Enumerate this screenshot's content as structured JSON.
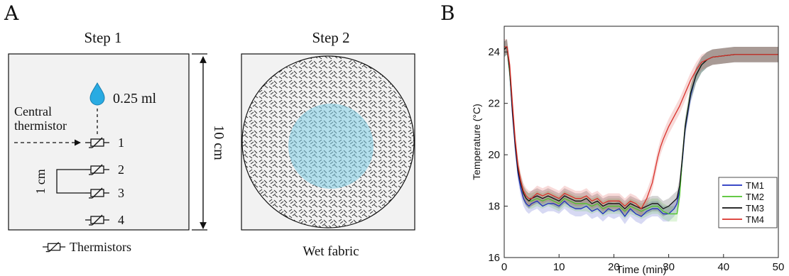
{
  "panel_a": {
    "letter": "A",
    "step1_title": "Step 1",
    "step2_title": "Step 2",
    "droplet_volume": "0.25 ml",
    "central_label_line1": "Central",
    "central_label_line2": "thermistor",
    "thermistor_labels": [
      "1",
      "2",
      "3",
      "4"
    ],
    "spacing_label": "1 cm",
    "size_label": "10 cm",
    "legend_label": "Thermistors",
    "step2_caption": "Wet fabric"
  },
  "panel_b": {
    "letter": "B"
  },
  "chart_data": {
    "type": "line",
    "title": "",
    "xlabel": "Time (min)",
    "ylabel": "Temperature (°C)",
    "xlim": [
      0,
      50
    ],
    "ylim": [
      16,
      25
    ],
    "xticks": [
      0,
      10,
      20,
      30,
      40,
      50
    ],
    "yticks": [
      16,
      18,
      20,
      22,
      24
    ],
    "grid": false,
    "legend_position": "bottom-right",
    "series": [
      {
        "name": "TM1",
        "color": "#1f2fbf",
        "band": 0.3,
        "x": [
          0,
          0.5,
          1,
          1.5,
          2,
          2.5,
          3,
          3.5,
          4,
          4.5,
          5,
          6,
          7,
          8,
          9,
          10,
          11,
          12,
          13,
          14,
          15,
          16,
          17,
          18,
          19,
          20,
          21,
          22,
          23,
          24,
          25,
          26,
          27,
          28,
          29,
          30,
          31,
          31.5,
          32,
          32.5,
          33,
          34,
          35,
          36,
          37,
          38,
          40,
          42,
          44,
          46,
          48,
          50
        ],
        "y": [
          24.1,
          24.2,
          23.2,
          21.6,
          20.3,
          19.3,
          18.7,
          18.3,
          18.1,
          18.0,
          18.1,
          18.2,
          18.0,
          18.1,
          18.1,
          18.0,
          18.2,
          18.0,
          17.9,
          17.9,
          18.0,
          17.8,
          17.9,
          17.7,
          17.9,
          17.8,
          17.9,
          17.6,
          17.9,
          17.7,
          17.6,
          17.8,
          17.9,
          17.9,
          17.7,
          17.7,
          17.9,
          18.1,
          18.6,
          19.8,
          21.0,
          22.3,
          23.1,
          23.5,
          23.7,
          23.8,
          23.85,
          23.9,
          23.9,
          23.9,
          23.9,
          23.9
        ]
      },
      {
        "name": "TM2",
        "color": "#4fc22b",
        "band": 0.3,
        "x": [
          0,
          0.5,
          1,
          1.5,
          2,
          2.5,
          3,
          3.5,
          4,
          4.5,
          5,
          6,
          7,
          8,
          9,
          10,
          11,
          12,
          13,
          14,
          15,
          16,
          17,
          18,
          19,
          20,
          21,
          22,
          23,
          24,
          25,
          26,
          27,
          28,
          29,
          30,
          31,
          31.5,
          32,
          32.5,
          33,
          34,
          35,
          36,
          37,
          38,
          40,
          42,
          44,
          46,
          48,
          50
        ],
        "y": [
          24.1,
          24.2,
          23.2,
          21.8,
          20.5,
          19.5,
          18.9,
          18.5,
          18.3,
          18.2,
          18.2,
          18.3,
          18.2,
          18.3,
          18.2,
          18.1,
          18.3,
          18.2,
          18.1,
          18.1,
          18.1,
          18.0,
          18.1,
          17.9,
          18.0,
          18.0,
          18.0,
          17.8,
          18.0,
          17.9,
          17.8,
          17.9,
          18.0,
          18.0,
          17.8,
          17.7,
          17.7,
          17.7,
          18.4,
          19.9,
          21.1,
          22.4,
          23.1,
          23.5,
          23.7,
          23.8,
          23.85,
          23.9,
          23.9,
          23.9,
          23.9,
          23.9
        ]
      },
      {
        "name": "TM3",
        "color": "#111111",
        "band": 0.3,
        "x": [
          0,
          0.5,
          1,
          1.5,
          2,
          2.5,
          3,
          3.5,
          4,
          4.5,
          5,
          6,
          7,
          8,
          9,
          10,
          11,
          12,
          13,
          14,
          15,
          16,
          17,
          18,
          19,
          20,
          21,
          22,
          23,
          24,
          25,
          26,
          27,
          28,
          29,
          30,
          31,
          31.5,
          32,
          32.5,
          33,
          34,
          35,
          36,
          37,
          38,
          40,
          42,
          44,
          46,
          48,
          50
        ],
        "y": [
          24.1,
          24.2,
          23.3,
          21.7,
          20.4,
          19.4,
          18.9,
          18.5,
          18.3,
          18.2,
          18.3,
          18.4,
          18.3,
          18.4,
          18.3,
          18.2,
          18.4,
          18.3,
          18.2,
          18.2,
          18.3,
          18.1,
          18.2,
          18.0,
          18.1,
          18.1,
          18.1,
          17.9,
          18.1,
          18.0,
          17.9,
          18.0,
          18.1,
          18.1,
          17.9,
          18.0,
          18.2,
          18.3,
          18.8,
          19.9,
          21.1,
          22.4,
          23.1,
          23.5,
          23.7,
          23.8,
          23.85,
          23.9,
          23.9,
          23.9,
          23.9,
          23.9
        ]
      },
      {
        "name": "TM4",
        "color": "#d9302a",
        "band": 0.3,
        "x": [
          0,
          0.5,
          1,
          1.5,
          2,
          2.5,
          3,
          3.5,
          4,
          4.5,
          5,
          6,
          7,
          8,
          9,
          10,
          11,
          12,
          13,
          14,
          15,
          16,
          17,
          18,
          19,
          20,
          21,
          22,
          23,
          24,
          25,
          26,
          27,
          27.5,
          28,
          28.5,
          29,
          30,
          31,
          32,
          33,
          34,
          35,
          36,
          37,
          38,
          40,
          42,
          44,
          46,
          48,
          50
        ],
        "y": [
          24.2,
          24.2,
          23.5,
          22.0,
          20.6,
          19.6,
          19.0,
          18.6,
          18.4,
          18.3,
          18.3,
          18.5,
          18.4,
          18.5,
          18.4,
          18.3,
          18.5,
          18.4,
          18.3,
          18.3,
          18.4,
          18.2,
          18.3,
          18.1,
          18.2,
          18.2,
          18.2,
          18.0,
          18.2,
          18.1,
          17.9,
          18.3,
          18.9,
          19.4,
          19.9,
          20.3,
          20.6,
          21.1,
          21.5,
          21.9,
          22.4,
          22.9,
          23.3,
          23.6,
          23.7,
          23.8,
          23.85,
          23.9,
          23.9,
          23.9,
          23.9,
          23.9
        ]
      }
    ]
  }
}
